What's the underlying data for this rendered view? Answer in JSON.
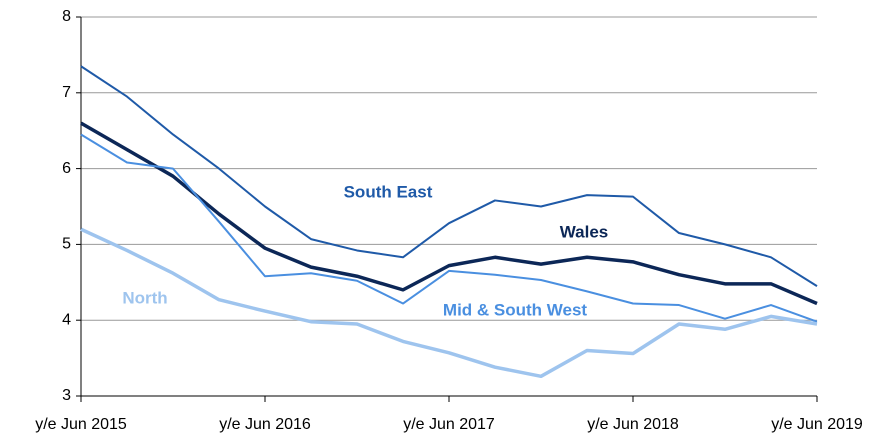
{
  "chart_data": {
    "type": "line",
    "categories": [
      "y/e Jun 2015",
      null,
      null,
      null,
      "y/e Jun 2016",
      null,
      null,
      null,
      "y/e Jun 2017",
      null,
      null,
      null,
      "y/e Jun 2018",
      null,
      null,
      null,
      "y/e Jun 2019"
    ],
    "series": [
      {
        "name": "South East",
        "color": "#1f5aa8",
        "values": [
          7.35,
          6.95,
          6.45,
          6.0,
          5.5,
          5.07,
          4.92,
          4.83,
          5.28,
          5.58,
          5.5,
          5.65,
          5.63,
          5.15,
          5.0,
          4.83,
          4.45
        ]
      },
      {
        "name": "Wales",
        "color": "#0c2757",
        "values": [
          6.6,
          6.25,
          5.9,
          5.4,
          4.95,
          4.7,
          4.58,
          4.4,
          4.72,
          4.83,
          4.74,
          4.83,
          4.77,
          4.6,
          4.48,
          4.48,
          4.22
        ]
      },
      {
        "name": "Mid & South West",
        "color": "#4a8fe0",
        "values": [
          6.45,
          6.08,
          6.0,
          5.3,
          4.58,
          4.62,
          4.52,
          4.22,
          4.65,
          4.6,
          4.53,
          4.38,
          4.22,
          4.2,
          4.02,
          4.2,
          3.98
        ]
      },
      {
        "name": "North",
        "color": "#9ec4ee",
        "values": [
          5.2,
          4.92,
          4.62,
          4.27,
          4.12,
          3.98,
          3.95,
          3.72,
          3.57,
          3.38,
          3.26,
          3.6,
          3.56,
          3.95,
          3.88,
          4.05,
          3.95
        ]
      }
    ],
    "ylim": [
      3,
      8
    ],
    "yticks": [
      3,
      4,
      5,
      6,
      7,
      8
    ],
    "grid": true
  }
}
